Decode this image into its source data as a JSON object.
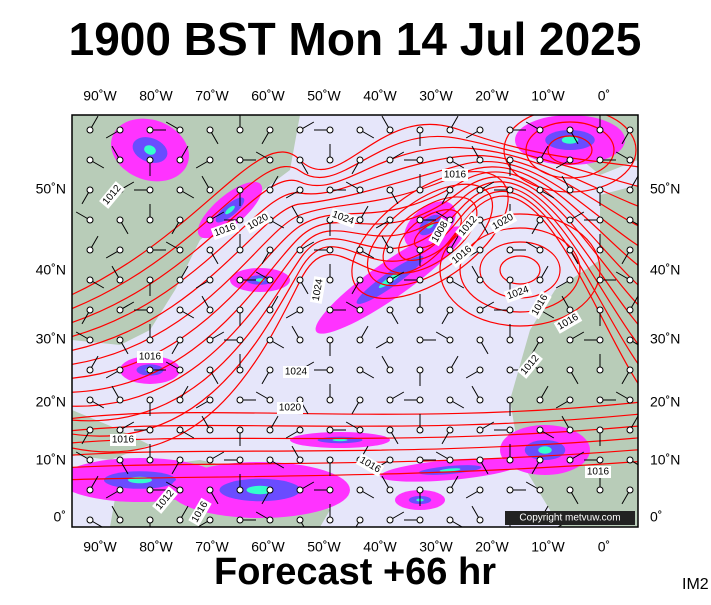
{
  "header": {
    "title": "1900 BST Mon 14 Jul 2025"
  },
  "footer": {
    "forecast": "Forecast +66 hr",
    "code": "IM2"
  },
  "map": {
    "lon_labels": [
      "90˚W",
      "80˚W",
      "70˚W",
      "60˚W",
      "50˚W",
      "40˚W",
      "30˚W",
      "20˚W",
      "10˚W",
      "0˚"
    ],
    "lat_labels": [
      "50˚N",
      "40˚N",
      "30˚N",
      "20˚N",
      "10˚N",
      "0˚"
    ],
    "isobar_labels": [
      "1012",
      "1016",
      "1020",
      "1016",
      "1024",
      "1008",
      "1012",
      "1016",
      "1020",
      "1024",
      "1024",
      "1016",
      "1016",
      "1012",
      "1016",
      "1024",
      "1020",
      "1016",
      "1016",
      "1012",
      "1016",
      "1016"
    ],
    "copyright": "Copyright metvuw.com"
  }
}
